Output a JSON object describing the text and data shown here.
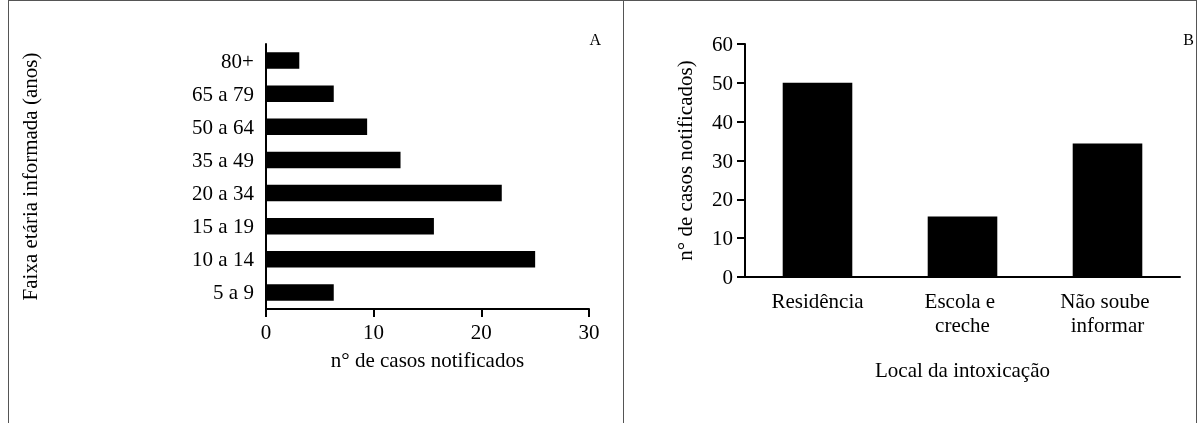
{
  "chart_data": [
    {
      "type": "bar",
      "orientation": "horizontal",
      "categories": [
        "80+",
        "65 a 79",
        "50 a 64",
        "35 a 49",
        "20 a 34",
        "15 a 19",
        "10 a 14",
        "5 a 9"
      ],
      "values": [
        3.1,
        6.3,
        9.4,
        12.5,
        21.9,
        15.6,
        25,
        6.3
      ],
      "color": "#000000",
      "xlabel": "n° de casos notificados",
      "ylabel": "Faixa etária informada (anos)",
      "xlim": [
        0,
        30
      ],
      "xticks": [
        0,
        10,
        20,
        30
      ],
      "grid": false,
      "annotations": [
        "A"
      ]
    },
    {
      "type": "bar",
      "categories": [
        "Residência",
        "Escola e creche",
        "Não soube informar"
      ],
      "values": [
        50,
        15.6,
        34.4
      ],
      "color": "#000000",
      "xlabel": "Local da intoxicação",
      "ylabel": "n° de casos notificados)",
      "ylim": [
        0,
        60
      ],
      "yticks": [
        0,
        10,
        20,
        30,
        40,
        50,
        60
      ],
      "grid": false,
      "annotations": [
        "B"
      ]
    }
  ]
}
